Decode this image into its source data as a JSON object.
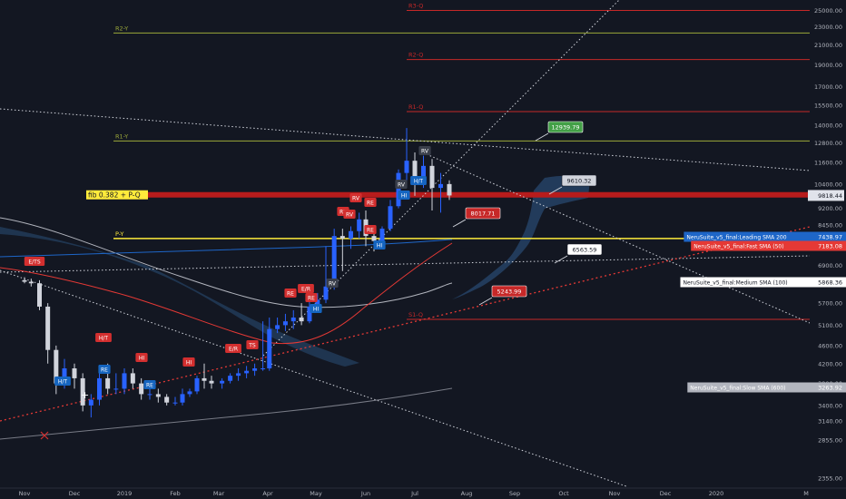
{
  "chart_data": {
    "type": "candlestick",
    "title": "",
    "xlabel": "",
    "ylabel": "",
    "ylim": [
      1800,
      28000
    ],
    "y_scale": "log",
    "y_ticks": [
      28000,
      25000,
      23000,
      21000,
      19000,
      17000,
      15500,
      14000,
      12800,
      11600,
      10400,
      9200,
      8450,
      7700,
      6900,
      6300,
      5700,
      5100,
      4600,
      4200,
      3800,
      3400,
      3140,
      2855,
      2355,
      1975
    ],
    "x_ticks": [
      "Nov",
      "Dec",
      "2019",
      "Feb",
      "Mar",
      "Apr",
      "May",
      "Jun",
      "Jul",
      "Aug",
      "Sep",
      "Oct",
      "Nov",
      "Dec",
      "2020",
      "M"
    ],
    "grid": false,
    "legend": "right price scale tags",
    "colors": {
      "background": "#131722",
      "up_candle": "#2962ff",
      "down_candle": "#d1d4dc",
      "pivot_green": "#9ba83a",
      "pivot_red": "#c62828",
      "pivot_yellow": "#ffeb3b",
      "sma_leading": "#1e66c8",
      "sma_fast": "#e53935",
      "sma_medium": "#b2b5be",
      "cloud": "#2f5a8a"
    },
    "pivot_levels": [
      {
        "label": "R3-Q",
        "value": 25000,
        "color": "red"
      },
      {
        "label": "R2-Y",
        "value": 22300,
        "color": "green"
      },
      {
        "label": "R2-Q",
        "value": 19500,
        "color": "red"
      },
      {
        "label": "R1-Q",
        "value": 15000,
        "color": "red"
      },
      {
        "label": "R1-Y",
        "value": 12930,
        "color": "green"
      },
      {
        "label": "fib 0.382 + P-Q",
        "value": 9850,
        "color": "red"
      },
      {
        "label": "P-Y",
        "value": 7900,
        "color": "yellow"
      },
      {
        "label": "S1-Q",
        "value": 5250,
        "color": "red"
      }
    ],
    "price_callouts": [
      {
        "label": "12939.79",
        "value": 12939.79,
        "color": "green"
      },
      {
        "label": "9610.32",
        "value": 9610.32,
        "color": "gray"
      },
      {
        "label": "8017.71",
        "value": 8017.71,
        "color": "red"
      },
      {
        "label": "6563.59",
        "value": 6563.59,
        "color": "white"
      },
      {
        "label": "5243.99",
        "value": 5243.99,
        "color": "red"
      }
    ],
    "current_price_tag": "9818.44",
    "indicator_tags": [
      {
        "label": "NeruSuite_v5_final:Leading SMA 200",
        "value": "7438.97",
        "color": "#1e66c8"
      },
      {
        "label": "NeruSuite_v5_final:Fast SMA (50)",
        "value": "7183.08",
        "color": "#e53935"
      },
      {
        "label": "NeruSuite_v5_final:Medium SMA (100)",
        "value": "5868.36",
        "color": "#ffffff"
      },
      {
        "label": "NeruSuite_v5_final:Slow SMA (600)",
        "value": "3263.92",
        "color": "#b2b5be"
      }
    ],
    "signal_labels": [
      "E/TS",
      "H/T",
      "H/T",
      "RE",
      "HI",
      "RE",
      "HI",
      "E/R",
      "TS",
      "RE",
      "E/R",
      "RE",
      "HI",
      "RV",
      "RV",
      "RE",
      "RV",
      "RE",
      "RE",
      "HI",
      "RV",
      "H/T",
      "RV",
      "HI"
    ],
    "series": [
      {
        "name": "BTC candles (weekly-ish)",
        "dates": [
          "2018-11-01",
          "2018-11-05",
          "2018-11-10",
          "2018-11-15",
          "2018-11-20",
          "2018-11-25",
          "2018-12-01",
          "2018-12-06",
          "2018-12-11",
          "2018-12-16",
          "2018-12-21",
          "2018-12-26",
          "2019-01-01",
          "2019-01-06",
          "2019-01-11",
          "2019-01-16",
          "2019-01-21",
          "2019-01-26",
          "2019-02-01",
          "2019-02-06",
          "2019-02-11",
          "2019-02-16",
          "2019-02-21",
          "2019-02-26",
          "2019-03-03",
          "2019-03-08",
          "2019-03-13",
          "2019-03-18",
          "2019-03-23",
          "2019-03-28",
          "2019-04-02",
          "2019-04-07",
          "2019-04-12",
          "2019-04-17",
          "2019-04-22",
          "2019-04-27",
          "2019-05-02",
          "2019-05-07",
          "2019-05-12",
          "2019-05-17",
          "2019-05-22",
          "2019-05-27",
          "2019-06-01",
          "2019-06-06",
          "2019-06-11",
          "2019-06-16",
          "2019-06-21",
          "2019-06-26",
          "2019-07-01",
          "2019-07-06",
          "2019-07-11",
          "2019-07-16",
          "2019-07-21"
        ],
        "open": [
          6400,
          6350,
          6300,
          5600,
          4500,
          3800,
          4100,
          3900,
          3400,
          3500,
          3900,
          3700,
          3700,
          4000,
          3800,
          3600,
          3600,
          3550,
          3450,
          3450,
          3600,
          3650,
          3900,
          3850,
          3800,
          3850,
          3950,
          4000,
          4050,
          4100,
          4100,
          5000,
          5100,
          5200,
          5300,
          5200,
          5600,
          5800,
          6200,
          8000,
          7900,
          8200,
          8700,
          8000,
          7800,
          8300,
          9300,
          11000,
          11700,
          10800,
          11400,
          10200,
          10400
        ],
        "high": [
          6500,
          6450,
          6400,
          5700,
          4600,
          4300,
          4200,
          4000,
          3600,
          4100,
          4200,
          4000,
          4100,
          4100,
          3900,
          3700,
          3700,
          3600,
          3550,
          3700,
          3700,
          3950,
          4200,
          3950,
          3900,
          4000,
          4100,
          4150,
          4200,
          5200,
          5300,
          5300,
          5400,
          5500,
          5700,
          5800,
          6000,
          7600,
          8300,
          8300,
          8400,
          9000,
          9100,
          8200,
          8400,
          9600,
          11200,
          13800,
          12200,
          12000,
          11800,
          11000,
          10600
        ],
        "low": [
          6300,
          6200,
          5500,
          4200,
          3600,
          3700,
          3700,
          3300,
          3200,
          3400,
          3600,
          3600,
          3600,
          3700,
          3500,
          3500,
          3450,
          3400,
          3400,
          3400,
          3550,
          3600,
          3700,
          3700,
          3700,
          3800,
          3850,
          3900,
          3950,
          4050,
          4050,
          4900,
          4950,
          5000,
          5100,
          5150,
          5500,
          5700,
          6100,
          6700,
          7500,
          7900,
          7600,
          7400,
          7700,
          8200,
          9200,
          10500,
          9800,
          10200,
          9100,
          9000,
          9600
        ],
        "close": [
          6350,
          6300,
          5600,
          4500,
          3800,
          4100,
          3900,
          3400,
          3500,
          3900,
          3700,
          3700,
          4000,
          3800,
          3600,
          3600,
          3550,
          3450,
          3450,
          3600,
          3650,
          3900,
          3850,
          3800,
          3850,
          3950,
          4000,
          4050,
          4100,
          4100,
          5000,
          5100,
          5200,
          5300,
          5200,
          5600,
          5800,
          6200,
          8000,
          7900,
          8200,
          8700,
          8000,
          7800,
          8300,
          9300,
          11000,
          11700,
          10800,
          11400,
          10200,
          10400,
          9818
        ]
      }
    ]
  }
}
